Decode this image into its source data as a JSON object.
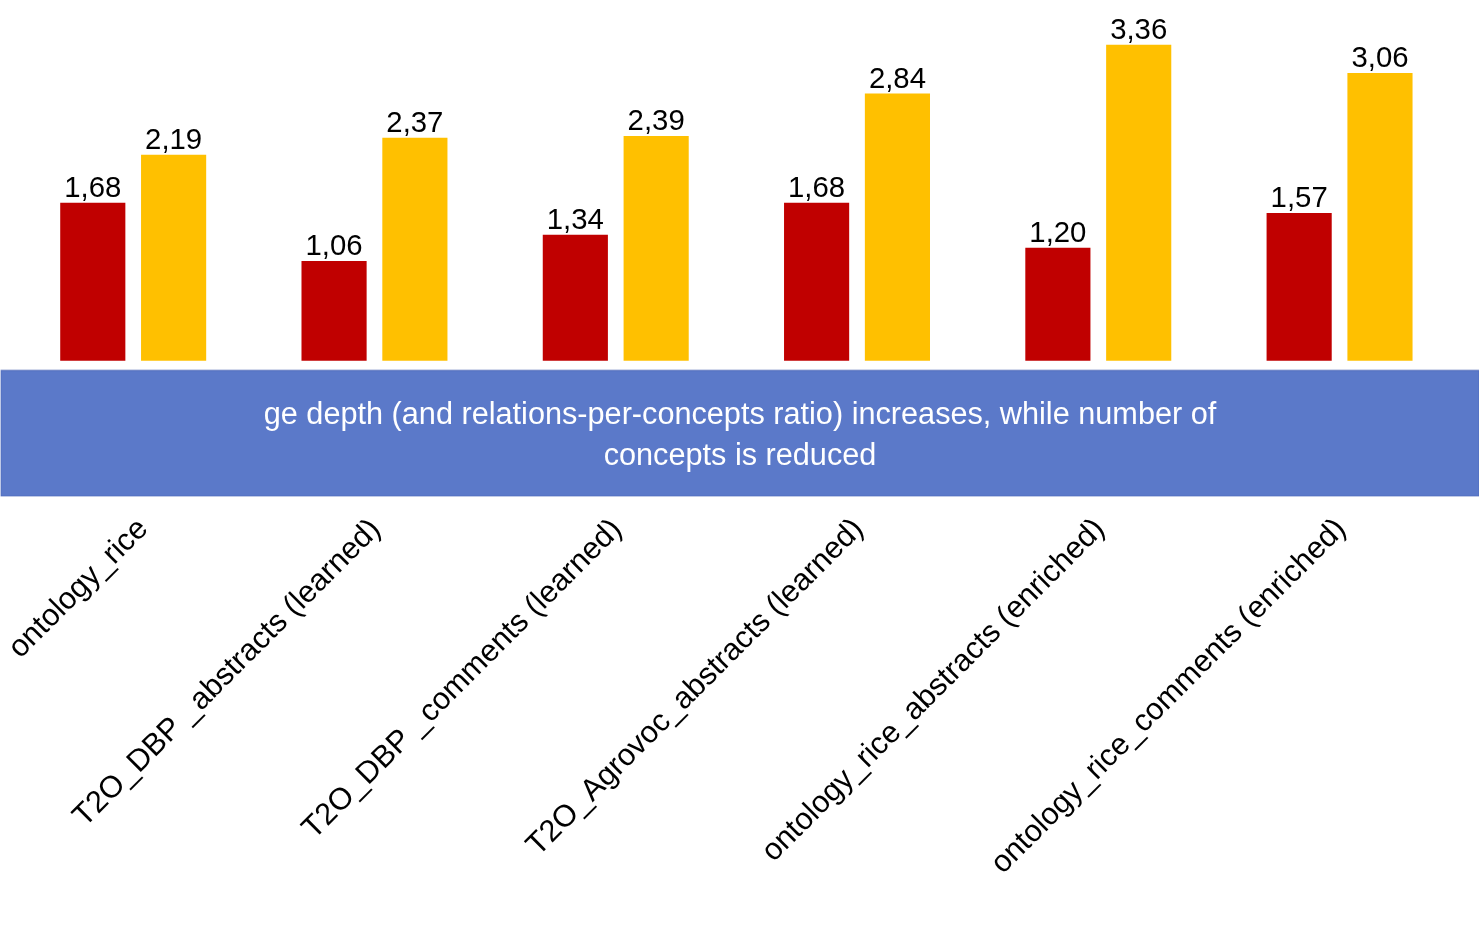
{
  "chart_data": {
    "type": "bar",
    "categories": [
      "ontology_rice",
      "T2O_DBP _abstracts (learned)",
      "T2O_DBP _comments (learned)",
      "T2O_Agrovoc_abstracts (learned)",
      "ontology_rice_abstracts (enriched)",
      "ontology_rice_comments (enriched)"
    ],
    "series": [
      {
        "color": "#c00000",
        "values": [
          1.68,
          1.06,
          1.34,
          1.68,
          1.2,
          1.57
        ],
        "value_labels": [
          "1,68",
          "1,06",
          "1,34",
          "1,68",
          "1,20",
          "1,57"
        ]
      },
      {
        "color": "#ffc000",
        "values": [
          2.19,
          2.37,
          2.39,
          2.84,
          3.36,
          3.06
        ],
        "value_labels": [
          "2,19",
          "2,37",
          "2,39",
          "2,84",
          "3,36",
          "3,06"
        ]
      }
    ],
    "annotations": [
      "ge depth (and relations-per-concepts ratio) increases, while number of concepts is reduced"
    ],
    "grid": false
  }
}
